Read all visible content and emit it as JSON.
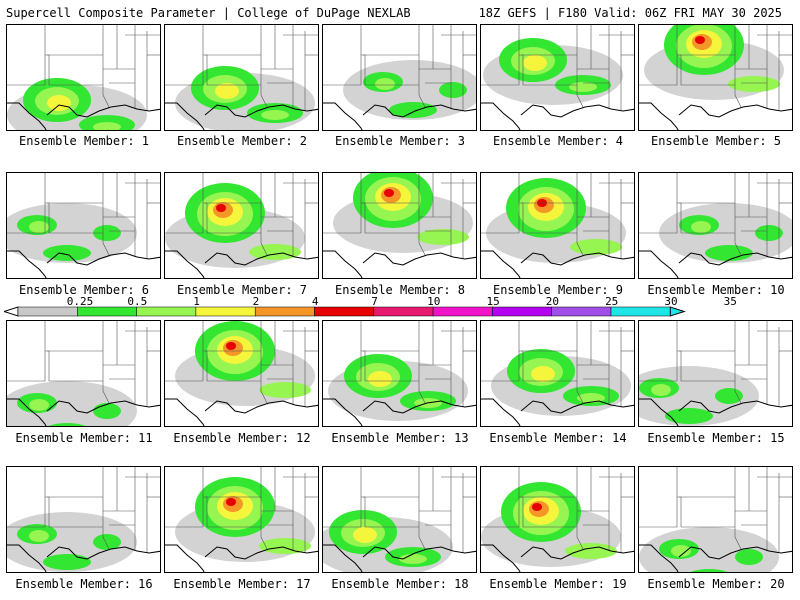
{
  "header": {
    "title": "Supercell Composite Parameter | College of DuPage NEXLAB",
    "run_info": "18Z GEFS | F180 Valid: 06Z FRI MAY 30 2025"
  },
  "colorbar": {
    "ticks": [
      "0.25",
      "0.5",
      "1",
      "2",
      "4",
      "7",
      "10",
      "15",
      "20",
      "25",
      "30",
      "35"
    ],
    "colors": [
      "#c8c8c8",
      "#32e632",
      "#96f550",
      "#f5f53c",
      "#f59628",
      "#e60000",
      "#e6196e",
      "#f014c8",
      "#b400f0",
      "#a050e6",
      "#1ee6e6"
    ],
    "left_arrow_color": "#ffffff",
    "right_arrow_color": "#1ee6e6"
  },
  "members": [
    {
      "label": "Ensemble Member: 1",
      "intensity": "moderate"
    },
    {
      "label": "Ensemble Member: 2",
      "intensity": "moderate"
    },
    {
      "label": "Ensemble Member: 3",
      "intensity": "low"
    },
    {
      "label": "Ensemble Member: 4",
      "intensity": "moderate"
    },
    {
      "label": "Ensemble Member: 5",
      "intensity": "high"
    },
    {
      "label": "Ensemble Member: 6",
      "intensity": "low"
    },
    {
      "label": "Ensemble Member: 7",
      "intensity": "high"
    },
    {
      "label": "Ensemble Member: 8",
      "intensity": "high"
    },
    {
      "label": "Ensemble Member: 9",
      "intensity": "high"
    },
    {
      "label": "Ensemble Member: 10",
      "intensity": "low"
    },
    {
      "label": "Ensemble Member: 11",
      "intensity": "low"
    },
    {
      "label": "Ensemble Member: 12",
      "intensity": "high"
    },
    {
      "label": "Ensemble Member: 13",
      "intensity": "moderate"
    },
    {
      "label": "Ensemble Member: 14",
      "intensity": "moderate"
    },
    {
      "label": "Ensemble Member: 15",
      "intensity": "low"
    },
    {
      "label": "Ensemble Member: 16",
      "intensity": "low"
    },
    {
      "label": "Ensemble Member: 17",
      "intensity": "high"
    },
    {
      "label": "Ensemble Member: 18",
      "intensity": "moderate"
    },
    {
      "label": "Ensemble Member: 19",
      "intensity": "high"
    },
    {
      "label": "Ensemble Member: 20",
      "intensity": "low"
    }
  ]
}
